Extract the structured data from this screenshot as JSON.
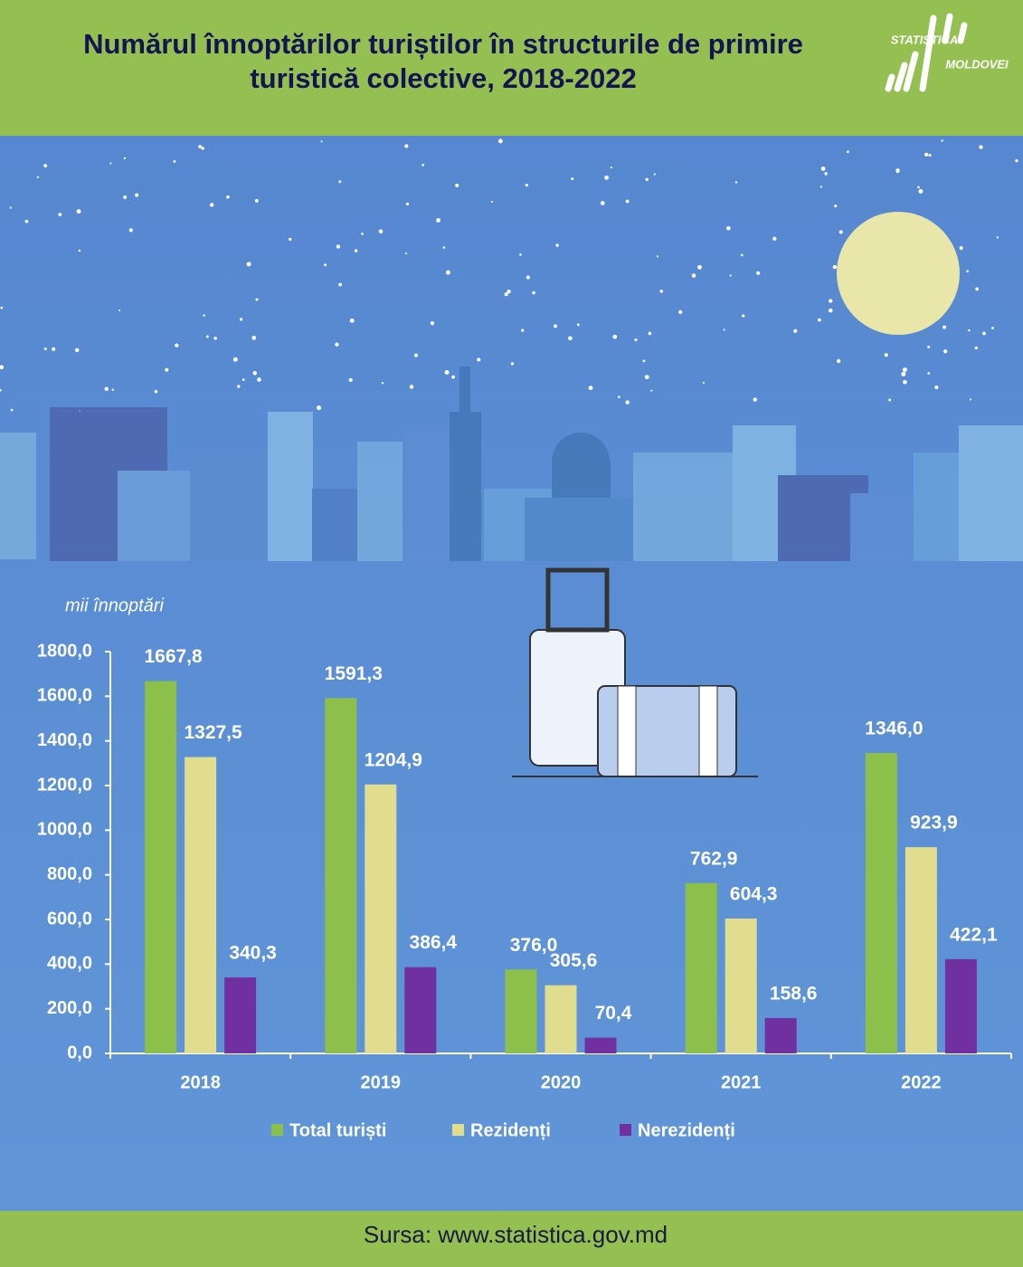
{
  "header": {
    "logo_top": "STATISTICA",
    "logo_bottom": "MOLDOVEI"
  },
  "chart_data": {
    "type": "bar",
    "title": "Numărul înnoptărilor turiștilor în structurile de primire turistică colective, 2018-2022",
    "y_label": "mii înnoptări",
    "categories": [
      "2018",
      "2019",
      "2020",
      "2021",
      "2022"
    ],
    "series": [
      {
        "name": "Total turiști",
        "color": "#8dc04a",
        "values": [
          1667.8,
          1591.3,
          376.0,
          762.9,
          1346.0
        ],
        "value_labels": [
          "1667,8",
          "1591,3",
          "376,0",
          "762,9",
          "1346,0"
        ]
      },
      {
        "name": "Rezidenți",
        "color": "#e0dd8f",
        "values": [
          1327.5,
          1204.9,
          305.6,
          604.3,
          923.9
        ],
        "value_labels": [
          "1327,5",
          "1204,9",
          "305,6",
          "604,3",
          "923,9"
        ]
      },
      {
        "name": "Nerezidenți",
        "color": "#7030a0",
        "values": [
          340.3,
          386.4,
          70.4,
          158.6,
          422.1
        ],
        "value_labels": [
          "340,3",
          "386,4",
          "70,4",
          "158,6",
          "422,1"
        ]
      }
    ],
    "ylim": [
      0,
      1800
    ],
    "yticks": [
      {
        "value": 0,
        "label": "0,0"
      },
      {
        "value": 200,
        "label": "200,0"
      },
      {
        "value": 400,
        "label": "400,0"
      },
      {
        "value": 600,
        "label": "600,0"
      },
      {
        "value": 800,
        "label": "800,0"
      },
      {
        "value": 1000,
        "label": "1000,0"
      },
      {
        "value": 1200,
        "label": "1200,0"
      },
      {
        "value": 1400,
        "label": "1400,0"
      },
      {
        "value": 1600,
        "label": "1600,0"
      },
      {
        "value": 1800,
        "label": "1800,0"
      }
    ],
    "legend": "bottom"
  },
  "footer": {
    "source": "Sursa: www.statistica.gov.md"
  }
}
